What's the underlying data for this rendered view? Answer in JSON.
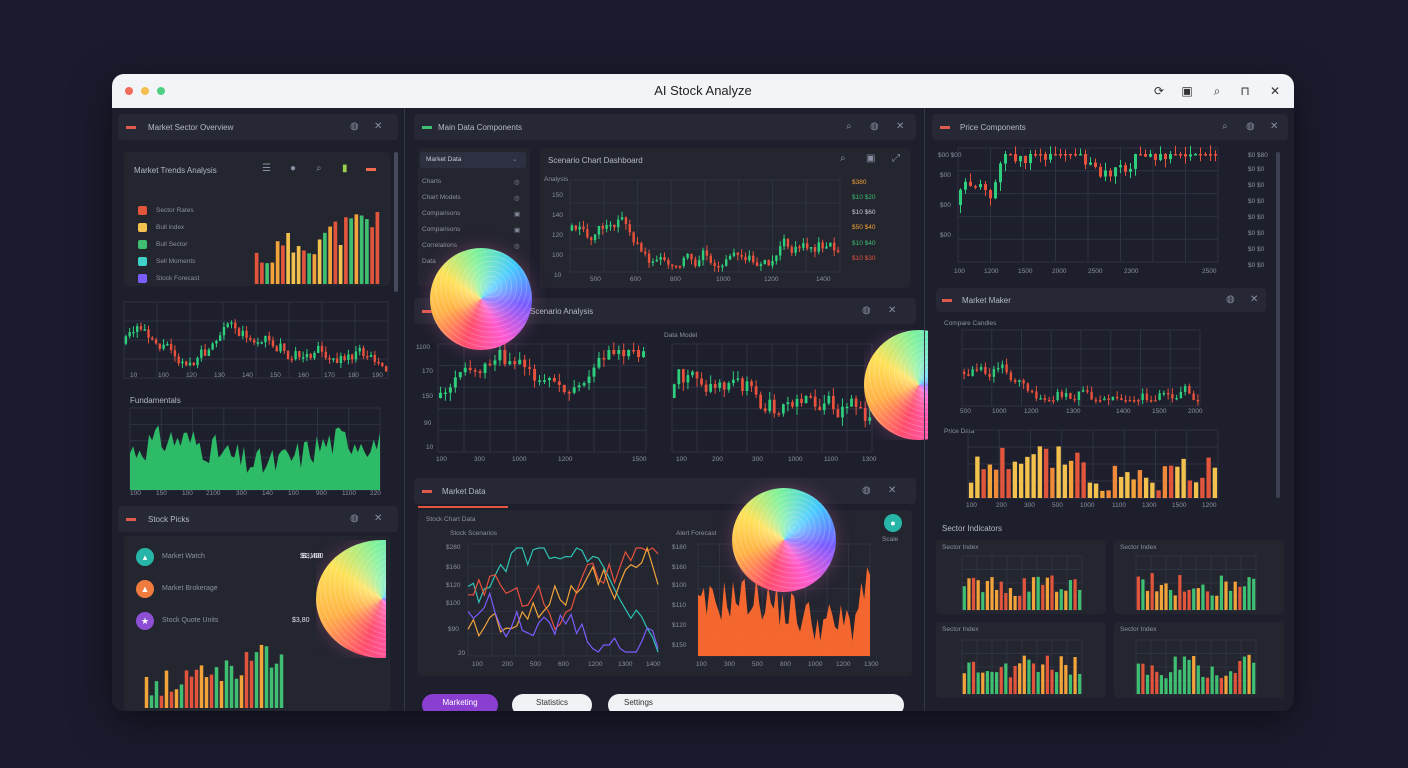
{
  "window": {
    "title": "AI Stock Analyze",
    "traffic_lights": [
      "#f26b5b",
      "#f6bd4f",
      "#4fcf84"
    ],
    "toolbar_icons": [
      "refresh-icon",
      "calendar-icon",
      "search-icon",
      "bookmark-icon",
      "close-icon"
    ]
  },
  "left": {
    "panel1_title": "Market Sector Overview",
    "toolbar_label": "Market Trends Analysis",
    "legend": [
      {
        "label": "Sector Rates",
        "color": "#e0553b"
      },
      {
        "label": "Bull index",
        "color": "#f2c14e"
      },
      {
        "label": "Bull Sector",
        "color": "#3fbf72"
      },
      {
        "label": "Sell Moments",
        "color": "#3fd0c9"
      },
      {
        "label": "Stock Forecast",
        "color": "#7b5cff"
      }
    ],
    "mid_chart_ticks": [
      "10",
      "100",
      "120",
      "130",
      "140",
      "150",
      "160",
      "170",
      "180",
      "190"
    ],
    "area_title": "Fundamentals",
    "area_ticks": [
      "100",
      "150",
      "100",
      "2100",
      "300",
      "140",
      "100",
      "900",
      "1100",
      "220"
    ],
    "bottom_title": "Stock Picks",
    "picks": [
      {
        "label": "Market Watch",
        "value": "$1,160",
        "color": "#27b5a8",
        "icon": "chart-icon"
      },
      {
        "label": "Market Brokerage",
        "value": "$3,400",
        "color": "#f07b3f",
        "icon": "fire-icon"
      },
      {
        "label": "Stock Quote Units",
        "value": "$3,80",
        "color": "#8d4fd4",
        "icon": "star-icon"
      }
    ]
  },
  "center": {
    "panel_title": "Main Data Components",
    "dropdown_label": "Market Data",
    "list_items": [
      "Charts",
      "Chart Models",
      "Comparisons",
      "Comparisons",
      "Correlations",
      "Data"
    ],
    "inner_title": "Scenario Chart Dashboard",
    "inner_y": [
      "Analysis",
      "150",
      "140",
      "120",
      "100",
      "10"
    ],
    "inner_x": [
      "500",
      "600",
      "800",
      "1000",
      "1200",
      "1400"
    ],
    "inner_right": [
      "$380",
      "$10 $20",
      "$10 $60",
      "$50 $40",
      "$10 $40",
      "$10 $30"
    ],
    "mid_title": "Scenario Analysis",
    "chart_a_y": [
      "1100",
      "170",
      "150",
      "90",
      "10"
    ],
    "chart_a_x": [
      "100",
      "300",
      "1000",
      "1200",
      "1500"
    ],
    "chart_b_title": "Data Model",
    "chart_b_x": [
      "100",
      "200",
      "300",
      "1000",
      "1100",
      "1300"
    ],
    "bottom_title": "Market Data",
    "bottom_sub": "Stock Chart Data",
    "bottom_sub2": "Stock Scenarios",
    "bottom_right_label": "Scale",
    "chart_c_y": [
      "$280",
      "$160",
      "$120",
      "$100",
      "$90",
      "20"
    ],
    "chart_c_x": [
      "100",
      "200",
      "500",
      "600",
      "1200",
      "1300",
      "1400"
    ],
    "chart_d_title": "Alert Forecast",
    "chart_d_y": [
      "$180",
      "$160",
      "$100",
      "$110",
      "$120",
      "$150"
    ],
    "chart_d_x": [
      "100",
      "300",
      "500",
      "800",
      "1000",
      "1200",
      "1300"
    ],
    "buttons": [
      "Marketing",
      "Statistics",
      "Settings"
    ]
  },
  "right": {
    "panel_title": "Price Components",
    "top_y": [
      "$00 $00",
      "$00",
      "$00",
      "$00"
    ],
    "top_x": [
      "100",
      "1200",
      "1500",
      "2000",
      "2500",
      "2300",
      "2500"
    ],
    "top_right": [
      "$0 $80",
      "$0 $0",
      "$0 $0",
      "$0 $0",
      "$0 $0",
      "$0 $0",
      "$0 $0",
      "$0 $0"
    ],
    "mid_title": "Market Maker",
    "mid_label": "Compare Candles",
    "mid_x": [
      "500",
      "1000",
      "1200",
      "1300",
      "1400",
      "1500",
      "2000"
    ],
    "bar_title": "Price Data",
    "bar_x": [
      "100",
      "200",
      "300",
      "500",
      "1000",
      "1100",
      "1300",
      "1500",
      "1200"
    ],
    "section_title": "Sector Indicators",
    "mini": [
      {
        "title": "Sector Index"
      },
      {
        "title": "Sector Index"
      },
      {
        "title": "Sector Index"
      },
      {
        "title": "Sector Index"
      }
    ]
  }
}
